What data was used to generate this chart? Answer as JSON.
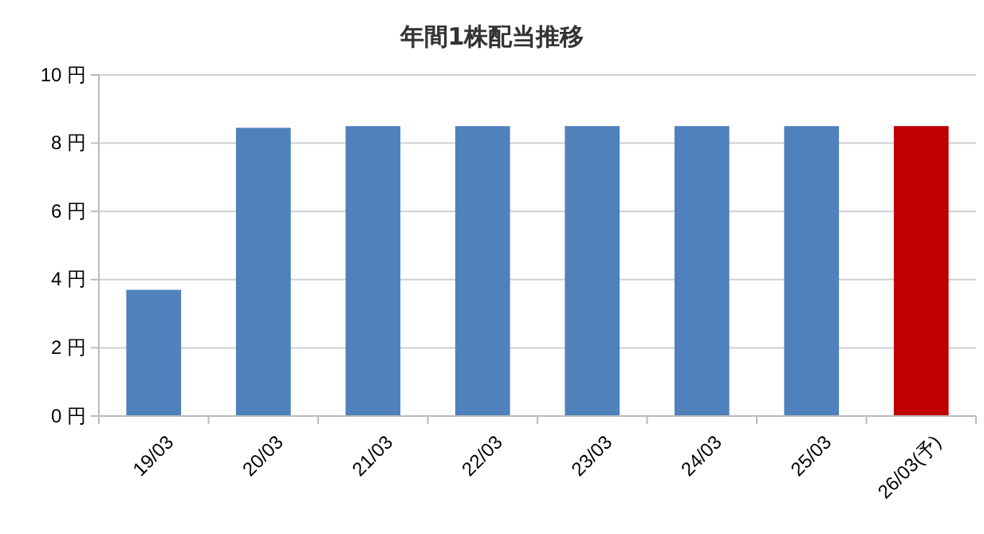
{
  "chart_data": {
    "type": "bar",
    "title": "年間1株配当推移",
    "categories": [
      "19/03",
      "20/03",
      "21/03",
      "22/03",
      "23/03",
      "24/03",
      "25/03",
      "26/03(予)"
    ],
    "values": [
      3.7,
      8.45,
      8.5,
      8.5,
      8.5,
      8.5,
      8.5,
      8.5
    ],
    "colors": [
      "#4f81bd",
      "#4f81bd",
      "#4f81bd",
      "#4f81bd",
      "#4f81bd",
      "#4f81bd",
      "#4f81bd",
      "#c00000"
    ],
    "ylim": [
      0,
      10
    ],
    "yticks": [
      {
        "value": 0,
        "label": "0 円"
      },
      {
        "value": 2,
        "label": "2 円"
      },
      {
        "value": 4,
        "label": "4 円"
      },
      {
        "value": 6,
        "label": "6 円"
      },
      {
        "value": 8,
        "label": "8 円"
      },
      {
        "value": 10,
        "label": "10 円"
      }
    ],
    "grid": "y"
  }
}
